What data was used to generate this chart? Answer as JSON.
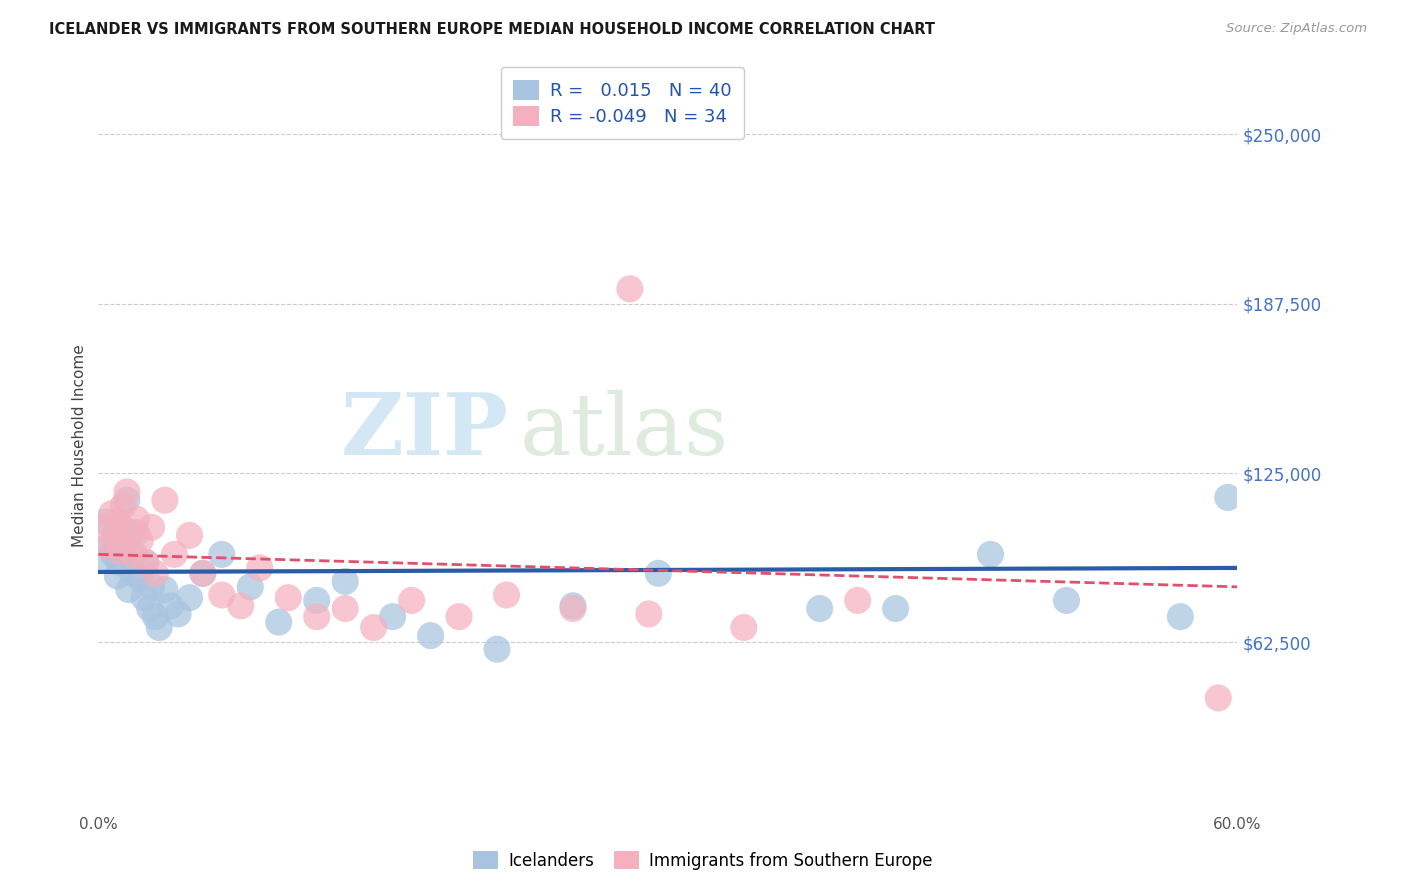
{
  "title": "ICELANDER VS IMMIGRANTS FROM SOUTHERN EUROPE MEDIAN HOUSEHOLD INCOME CORRELATION CHART",
  "source": "Source: ZipAtlas.com",
  "ylabel": "Median Household Income",
  "xlim": [
    0,
    0.6
  ],
  "ylim": [
    0,
    270000
  ],
  "yticks": [
    0,
    62500,
    125000,
    187500,
    250000
  ],
  "ytick_labels": [
    "",
    "$62,500",
    "$125,000",
    "$187,500",
    "$250,000"
  ],
  "xticks": [
    0.0,
    0.1,
    0.2,
    0.3,
    0.4,
    0.5,
    0.6
  ],
  "xtick_labels": [
    "0.0%",
    "",
    "",
    "",
    "",
    "",
    "60.0%"
  ],
  "legend_r_blue": "0.015",
  "legend_n_blue": "40",
  "legend_r_pink": "-0.049",
  "legend_n_pink": "34",
  "blue_color": "#a8c4e0",
  "pink_color": "#f4b0be",
  "blue_line_color": "#2a5ca8",
  "pink_line_color": "#e0506a",
  "blue_line_y0": 88500,
  "blue_line_y1": 90000,
  "pink_line_y0": 95000,
  "pink_line_y1": 83000,
  "blue_x": [
    0.002,
    0.004,
    0.006,
    0.008,
    0.009,
    0.01,
    0.011,
    0.012,
    0.013,
    0.015,
    0.016,
    0.018,
    0.019,
    0.02,
    0.022,
    0.024,
    0.025,
    0.027,
    0.028,
    0.03,
    0.032,
    0.035,
    0.038,
    0.042,
    0.048,
    0.055,
    0.065,
    0.08,
    0.095,
    0.115,
    0.13,
    0.155,
    0.175,
    0.21,
    0.25,
    0.295,
    0.42,
    0.51,
    0.57,
    0.595
  ],
  "blue_y": [
    93000,
    107000,
    98000,
    95000,
    100000,
    87000,
    92000,
    105000,
    96000,
    115000,
    82000,
    88000,
    95000,
    103000,
    86000,
    79000,
    92000,
    75000,
    83000,
    72000,
    68000,
    82000,
    76000,
    73000,
    79000,
    88000,
    95000,
    83000,
    70000,
    78000,
    85000,
    72000,
    65000,
    60000,
    76000,
    88000,
    75000,
    78000,
    72000,
    116000
  ],
  "pink_x": [
    0.003,
    0.005,
    0.007,
    0.009,
    0.01,
    0.011,
    0.013,
    0.015,
    0.017,
    0.018,
    0.02,
    0.022,
    0.025,
    0.028,
    0.03,
    0.035,
    0.04,
    0.048,
    0.055,
    0.065,
    0.075,
    0.085,
    0.1,
    0.115,
    0.13,
    0.145,
    0.165,
    0.19,
    0.215,
    0.25,
    0.29,
    0.34,
    0.4,
    0.59
  ],
  "pink_y": [
    105000,
    98000,
    110000,
    102000,
    107000,
    96000,
    113000,
    118000,
    103000,
    95000,
    108000,
    100000,
    92000,
    105000,
    88000,
    115000,
    95000,
    102000,
    88000,
    80000,
    76000,
    90000,
    79000,
    72000,
    75000,
    68000,
    78000,
    72000,
    80000,
    75000,
    73000,
    68000,
    78000,
    42000
  ],
  "pink_outlier_x": [
    0.28
  ],
  "pink_outlier_y": [
    193000
  ],
  "blue_far_x": [
    0.38
  ],
  "blue_far_y": [
    75000
  ],
  "blue_far2_x": [
    0.47
  ],
  "blue_far2_y": [
    95000
  ]
}
